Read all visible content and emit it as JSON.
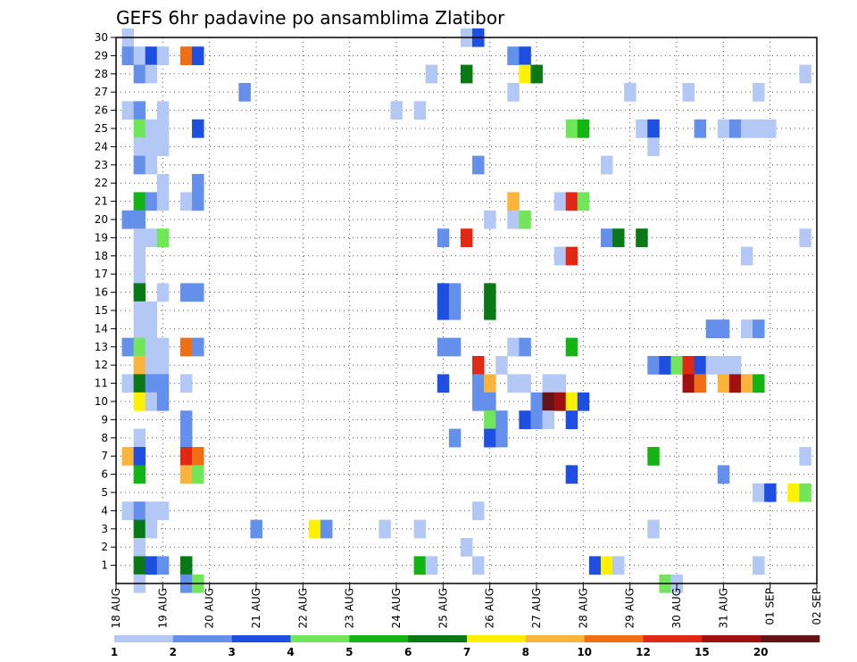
{
  "chart_data": {
    "type": "heatmap",
    "title": "GEFS 6hr padavine po ansamblima Zlatibor",
    "xlabel": "",
    "ylabel": "",
    "x_ticks": [
      "18 AUG",
      "19 AUG",
      "20 AUG",
      "21 AUG",
      "22 AUG",
      "23 AUG",
      "24 AUG",
      "25 AUG",
      "26 AUG",
      "27 AUG",
      "28 AUG",
      "29 AUG",
      "30 AUG",
      "31 AUG",
      "01 SEP",
      "02 SEP"
    ],
    "y_ticks": [
      "1",
      "2",
      "3",
      "4",
      "5",
      "6",
      "7",
      "8",
      "9",
      "10",
      "11",
      "12",
      "13",
      "14",
      "15",
      "16",
      "17",
      "18",
      "19",
      "20",
      "21",
      "22",
      "23",
      "24",
      "25",
      "26",
      "27",
      "28",
      "29",
      "30"
    ],
    "xlim": [
      0,
      60
    ],
    "ylim": [
      0,
      30
    ],
    "step_label": "6-hourly steps from 18 AUG 00Z",
    "grid": "dotted",
    "legend": {
      "placement": "bottom",
      "labels": [
        "1",
        "2",
        "3",
        "4",
        "5",
        "6",
        "7",
        "8",
        "10",
        "12",
        "15",
        "20"
      ],
      "colors": [
        "#b4c8f5",
        "#6490ec",
        "#1e4fe0",
        "#72e65a",
        "#14b414",
        "#0a7814",
        "#fff000",
        "#fab43c",
        "#f06e14",
        "#e02814",
        "#a01010",
        "#641414"
      ]
    },
    "cells": [
      {
        "member": 30,
        "step": 1,
        "level": 1
      },
      {
        "member": 30,
        "step": 30,
        "level": 1
      },
      {
        "member": 30,
        "step": 31,
        "level": 3
      },
      {
        "member": 29,
        "step": 1,
        "level": 2
      },
      {
        "member": 29,
        "step": 2,
        "level": 1
      },
      {
        "member": 29,
        "step": 3,
        "level": 3
      },
      {
        "member": 29,
        "step": 4,
        "level": 1
      },
      {
        "member": 29,
        "step": 6,
        "level": 10
      },
      {
        "member": 29,
        "step": 7,
        "level": 3
      },
      {
        "member": 29,
        "step": 34,
        "level": 2
      },
      {
        "member": 29,
        "step": 35,
        "level": 3
      },
      {
        "member": 28,
        "step": 2,
        "level": 2
      },
      {
        "member": 28,
        "step": 3,
        "level": 1
      },
      {
        "member": 28,
        "step": 27,
        "level": 1
      },
      {
        "member": 28,
        "step": 30,
        "level": 6
      },
      {
        "member": 28,
        "step": 35,
        "level": 7
      },
      {
        "member": 28,
        "step": 36,
        "level": 6
      },
      {
        "member": 28,
        "step": 59,
        "level": 1
      },
      {
        "member": 27,
        "step": 11,
        "level": 2
      },
      {
        "member": 27,
        "step": 34,
        "level": 1
      },
      {
        "member": 27,
        "step": 44,
        "level": 1
      },
      {
        "member": 27,
        "step": 49,
        "level": 1
      },
      {
        "member": 27,
        "step": 55,
        "level": 1
      },
      {
        "member": 26,
        "step": 1,
        "level": 1
      },
      {
        "member": 26,
        "step": 2,
        "level": 2
      },
      {
        "member": 26,
        "step": 4,
        "level": 1
      },
      {
        "member": 26,
        "step": 24,
        "level": 1
      },
      {
        "member": 26,
        "step": 26,
        "level": 1
      },
      {
        "member": 25,
        "step": 2,
        "level": 4
      },
      {
        "member": 25,
        "step": 3,
        "level": 1
      },
      {
        "member": 25,
        "step": 4,
        "level": 1
      },
      {
        "member": 25,
        "step": 7,
        "level": 3
      },
      {
        "member": 25,
        "step": 39,
        "level": 4
      },
      {
        "member": 25,
        "step": 40,
        "level": 5
      },
      {
        "member": 25,
        "step": 45,
        "level": 1
      },
      {
        "member": 25,
        "step": 46,
        "level": 3
      },
      {
        "member": 25,
        "step": 50,
        "level": 2
      },
      {
        "member": 25,
        "step": 52,
        "level": 1
      },
      {
        "member": 25,
        "step": 53,
        "level": 2
      },
      {
        "member": 25,
        "step": 54,
        "level": 1
      },
      {
        "member": 25,
        "step": 55,
        "level": 1
      },
      {
        "member": 25,
        "step": 56,
        "level": 1
      },
      {
        "member": 24,
        "step": 2,
        "level": 1
      },
      {
        "member": 24,
        "step": 3,
        "level": 1
      },
      {
        "member": 24,
        "step": 4,
        "level": 1
      },
      {
        "member": 24,
        "step": 46,
        "level": 1
      },
      {
        "member": 23,
        "step": 2,
        "level": 2
      },
      {
        "member": 23,
        "step": 3,
        "level": 1
      },
      {
        "member": 23,
        "step": 31,
        "level": 2
      },
      {
        "member": 23,
        "step": 42,
        "level": 1
      },
      {
        "member": 22,
        "step": 4,
        "level": 1
      },
      {
        "member": 22,
        "step": 7,
        "level": 2
      },
      {
        "member": 21,
        "step": 2,
        "level": 5
      },
      {
        "member": 21,
        "step": 3,
        "level": 2
      },
      {
        "member": 21,
        "step": 4,
        "level": 1
      },
      {
        "member": 21,
        "step": 6,
        "level": 1
      },
      {
        "member": 21,
        "step": 7,
        "level": 2
      },
      {
        "member": 21,
        "step": 34,
        "level": 8
      },
      {
        "member": 21,
        "step": 38,
        "level": 1
      },
      {
        "member": 21,
        "step": 39,
        "level": 12
      },
      {
        "member": 21,
        "step": 40,
        "level": 4
      },
      {
        "member": 20,
        "step": 1,
        "level": 2
      },
      {
        "member": 20,
        "step": 2,
        "level": 2
      },
      {
        "member": 20,
        "step": 32,
        "level": 1
      },
      {
        "member": 20,
        "step": 34,
        "level": 1
      },
      {
        "member": 20,
        "step": 35,
        "level": 4
      },
      {
        "member": 19,
        "step": 2,
        "level": 1
      },
      {
        "member": 19,
        "step": 3,
        "level": 1
      },
      {
        "member": 19,
        "step": 4,
        "level": 4
      },
      {
        "member": 19,
        "step": 28,
        "level": 2
      },
      {
        "member": 19,
        "step": 30,
        "level": 12
      },
      {
        "member": 19,
        "step": 42,
        "level": 2
      },
      {
        "member": 19,
        "step": 43,
        "level": 6
      },
      {
        "member": 19,
        "step": 45,
        "level": 6
      },
      {
        "member": 19,
        "step": 59,
        "level": 1
      },
      {
        "member": 18,
        "step": 2,
        "level": 1
      },
      {
        "member": 18,
        "step": 38,
        "level": 1
      },
      {
        "member": 18,
        "step": 39,
        "level": 12
      },
      {
        "member": 18,
        "step": 54,
        "level": 1
      },
      {
        "member": 17,
        "step": 2,
        "level": 1
      },
      {
        "member": 16,
        "step": 2,
        "level": 6
      },
      {
        "member": 16,
        "step": 4,
        "level": 1
      },
      {
        "member": 16,
        "step": 6,
        "level": 2
      },
      {
        "member": 16,
        "step": 7,
        "level": 2
      },
      {
        "member": 16,
        "step": 28,
        "level": 3
      },
      {
        "member": 16,
        "step": 29,
        "level": 2
      },
      {
        "member": 16,
        "step": 32,
        "level": 6
      },
      {
        "member": 15,
        "step": 2,
        "level": 1
      },
      {
        "member": 15,
        "step": 3,
        "level": 1
      },
      {
        "member": 15,
        "step": 28,
        "level": 3
      },
      {
        "member": 15,
        "step": 29,
        "level": 2
      },
      {
        "member": 15,
        "step": 32,
        "level": 6
      },
      {
        "member": 14,
        "step": 2,
        "level": 1
      },
      {
        "member": 14,
        "step": 3,
        "level": 1
      },
      {
        "member": 14,
        "step": 51,
        "level": 2
      },
      {
        "member": 14,
        "step": 52,
        "level": 2
      },
      {
        "member": 14,
        "step": 54,
        "level": 1
      },
      {
        "member": 14,
        "step": 55,
        "level": 2
      },
      {
        "member": 13,
        "step": 1,
        "level": 2
      },
      {
        "member": 13,
        "step": 2,
        "level": 4
      },
      {
        "member": 13,
        "step": 3,
        "level": 1
      },
      {
        "member": 13,
        "step": 4,
        "level": 1
      },
      {
        "member": 13,
        "step": 6,
        "level": 10
      },
      {
        "member": 13,
        "step": 7,
        "level": 2
      },
      {
        "member": 13,
        "step": 28,
        "level": 2
      },
      {
        "member": 13,
        "step": 29,
        "level": 2
      },
      {
        "member": 13,
        "step": 34,
        "level": 1
      },
      {
        "member": 13,
        "step": 35,
        "level": 2
      },
      {
        "member": 13,
        "step": 39,
        "level": 5
      },
      {
        "member": 12,
        "step": 2,
        "level": 8
      },
      {
        "member": 12,
        "step": 3,
        "level": 1
      },
      {
        "member": 12,
        "step": 4,
        "level": 1
      },
      {
        "member": 12,
        "step": 31,
        "level": 12
      },
      {
        "member": 12,
        "step": 33,
        "level": 1
      },
      {
        "member": 12,
        "step": 46,
        "level": 2
      },
      {
        "member": 12,
        "step": 47,
        "level": 3
      },
      {
        "member": 12,
        "step": 48,
        "level": 4
      },
      {
        "member": 12,
        "step": 49,
        "level": 12
      },
      {
        "member": 12,
        "step": 50,
        "level": 3
      },
      {
        "member": 12,
        "step": 51,
        "level": 1
      },
      {
        "member": 12,
        "step": 52,
        "level": 1
      },
      {
        "member": 12,
        "step": 53,
        "level": 1
      },
      {
        "member": 11,
        "step": 1,
        "level": 1
      },
      {
        "member": 11,
        "step": 2,
        "level": 6
      },
      {
        "member": 11,
        "step": 3,
        "level": 2
      },
      {
        "member": 11,
        "step": 4,
        "level": 2
      },
      {
        "member": 11,
        "step": 6,
        "level": 1
      },
      {
        "member": 11,
        "step": 28,
        "level": 3
      },
      {
        "member": 11,
        "step": 31,
        "level": 2
      },
      {
        "member": 11,
        "step": 32,
        "level": 8
      },
      {
        "member": 11,
        "step": 34,
        "level": 1
      },
      {
        "member": 11,
        "step": 35,
        "level": 1
      },
      {
        "member": 11,
        "step": 37,
        "level": 1
      },
      {
        "member": 11,
        "step": 38,
        "level": 1
      },
      {
        "member": 11,
        "step": 49,
        "level": 15
      },
      {
        "member": 11,
        "step": 50,
        "level": 10
      },
      {
        "member": 11,
        "step": 52,
        "level": 8
      },
      {
        "member": 11,
        "step": 53,
        "level": 15
      },
      {
        "member": 11,
        "step": 54,
        "level": 8
      },
      {
        "member": 11,
        "step": 55,
        "level": 5
      },
      {
        "member": 10,
        "step": 2,
        "level": 7
      },
      {
        "member": 10,
        "step": 3,
        "level": 1
      },
      {
        "member": 10,
        "step": 4,
        "level": 2
      },
      {
        "member": 10,
        "step": 31,
        "level": 2
      },
      {
        "member": 10,
        "step": 32,
        "level": 2
      },
      {
        "member": 10,
        "step": 36,
        "level": 2
      },
      {
        "member": 10,
        "step": 37,
        "level": 20
      },
      {
        "member": 10,
        "step": 38,
        "level": 15
      },
      {
        "member": 10,
        "step": 39,
        "level": 7
      },
      {
        "member": 10,
        "step": 40,
        "level": 3
      },
      {
        "member": 9,
        "step": 6,
        "level": 2
      },
      {
        "member": 9,
        "step": 32,
        "level": 4
      },
      {
        "member": 9,
        "step": 33,
        "level": 2
      },
      {
        "member": 9,
        "step": 35,
        "level": 3
      },
      {
        "member": 9,
        "step": 36,
        "level": 2
      },
      {
        "member": 9,
        "step": 37,
        "level": 1
      },
      {
        "member": 9,
        "step": 39,
        "level": 3
      },
      {
        "member": 8,
        "step": 2,
        "level": 1
      },
      {
        "member": 8,
        "step": 6,
        "level": 2
      },
      {
        "member": 8,
        "step": 29,
        "level": 2
      },
      {
        "member": 8,
        "step": 32,
        "level": 3
      },
      {
        "member": 8,
        "step": 33,
        "level": 2
      },
      {
        "member": 7,
        "step": 1,
        "level": 8
      },
      {
        "member": 7,
        "step": 2,
        "level": 3
      },
      {
        "member": 7,
        "step": 6,
        "level": 12
      },
      {
        "member": 7,
        "step": 7,
        "level": 10
      },
      {
        "member": 7,
        "step": 46,
        "level": 5
      },
      {
        "member": 7,
        "step": 59,
        "level": 1
      },
      {
        "member": 6,
        "step": 2,
        "level": 5
      },
      {
        "member": 6,
        "step": 6,
        "level": 8
      },
      {
        "member": 6,
        "step": 7,
        "level": 4
      },
      {
        "member": 6,
        "step": 39,
        "level": 3
      },
      {
        "member": 6,
        "step": 52,
        "level": 2
      },
      {
        "member": 5,
        "step": 55,
        "level": 1
      },
      {
        "member": 5,
        "step": 56,
        "level": 3
      },
      {
        "member": 5,
        "step": 58,
        "level": 7
      },
      {
        "member": 5,
        "step": 59,
        "level": 4
      },
      {
        "member": 4,
        "step": 1,
        "level": 1
      },
      {
        "member": 4,
        "step": 2,
        "level": 2
      },
      {
        "member": 4,
        "step": 3,
        "level": 1
      },
      {
        "member": 4,
        "step": 4,
        "level": 1
      },
      {
        "member": 4,
        "step": 31,
        "level": 1
      },
      {
        "member": 3,
        "step": 2,
        "level": 6
      },
      {
        "member": 3,
        "step": 3,
        "level": 1
      },
      {
        "member": 3,
        "step": 12,
        "level": 2
      },
      {
        "member": 3,
        "step": 17,
        "level": 7
      },
      {
        "member": 3,
        "step": 18,
        "level": 2
      },
      {
        "member": 3,
        "step": 23,
        "level": 1
      },
      {
        "member": 3,
        "step": 26,
        "level": 1
      },
      {
        "member": 3,
        "step": 46,
        "level": 1
      },
      {
        "member": 2,
        "step": 2,
        "level": 1
      },
      {
        "member": 2,
        "step": 30,
        "level": 1
      },
      {
        "member": 1,
        "step": 2,
        "level": 6
      },
      {
        "member": 1,
        "step": 3,
        "level": 3
      },
      {
        "member": 1,
        "step": 4,
        "level": 2
      },
      {
        "member": 1,
        "step": 6,
        "level": 6
      },
      {
        "member": 1,
        "step": 26,
        "level": 5
      },
      {
        "member": 1,
        "step": 27,
        "level": 1
      },
      {
        "member": 1,
        "step": 31,
        "level": 1
      },
      {
        "member": 1,
        "step": 41,
        "level": 3
      },
      {
        "member": 1,
        "step": 42,
        "level": 7
      },
      {
        "member": 1,
        "step": 43,
        "level": 1
      },
      {
        "member": 1,
        "step": 55,
        "level": 1
      },
      {
        "member": 0,
        "step": 2,
        "level": 1
      },
      {
        "member": 0,
        "step": 6,
        "level": 2
      },
      {
        "member": 0,
        "step": 7,
        "level": 4
      },
      {
        "member": 0,
        "step": 47,
        "level": 4
      },
      {
        "member": 0,
        "step": 48,
        "level": 1
      }
    ]
  }
}
